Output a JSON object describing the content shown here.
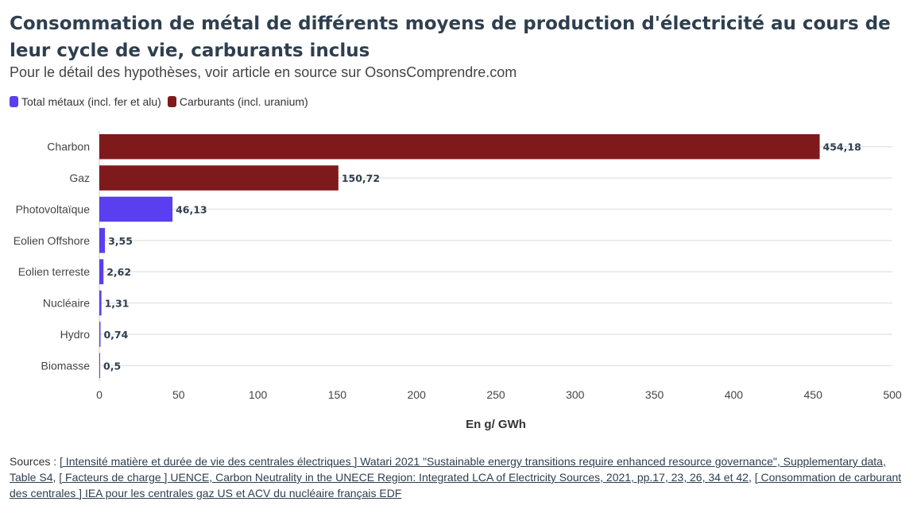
{
  "title": "Consommation de métal de différents moyens de production d'électricité au cours de leur cycle de vie, carburants inclus",
  "subtitle": "Pour le détail des hypothèses, voir article en source sur OsonsComprendre.com",
  "colors": {
    "metals": "#5a3ff0",
    "fuels": "#7f1a1c",
    "title": "#2e3f4f"
  },
  "chart_data": {
    "type": "bar",
    "orientation": "horizontal",
    "categories": [
      "Charbon",
      "Gaz",
      "Photovoltaïque",
      "Eolien Offshore",
      "Eolien terreste",
      "Nucléaire",
      "Hydro",
      "Biomasse"
    ],
    "values": [
      454.18,
      150.72,
      46.13,
      3.55,
      2.62,
      1.31,
      0.74,
      0.5
    ],
    "value_labels": [
      "454,18",
      "150,72",
      "46,13",
      "3,55",
      "2,62",
      "1,31",
      "0,74",
      "0,5"
    ],
    "bar_series": [
      "fuels",
      "fuels",
      "metals",
      "metals",
      "metals",
      "metals",
      "metals",
      "metals"
    ],
    "series": [
      {
        "key": "metals",
        "name": "Total métaux (incl. fer et alu)",
        "color": "#5a3ff0"
      },
      {
        "key": "fuels",
        "name": "Carburants (incl. uranium)",
        "color": "#7f1a1c"
      }
    ],
    "xlabel": "En g/ GWh",
    "ylabel": "",
    "xlim": [
      0,
      500
    ],
    "xticks": [
      0,
      50,
      100,
      150,
      200,
      250,
      300,
      350,
      400,
      450,
      500
    ],
    "grid": true,
    "legend_position": "top-left"
  },
  "sources": {
    "prefix": "Sources : ",
    "link1": "[ Intensité matière et durée de vie des centrales électriques ] Watari 2021 \"Sustainable energy transitions require enhanced resource governance\", Supplementary data, Table S4",
    "sep1": ", ",
    "link2": "[ Facteurs de charge ] UENCE, Carbon Neutrality in the UNECE Region: Integrated LCA of Electricity Sources, 2021, pp.17, 23, 26, 34 et 42",
    "sep2": ", ",
    "link3": "[ Consommation de carburant des centrales ] IEA pour les centrales gaz US et ACV du nucléaire français EDF"
  }
}
